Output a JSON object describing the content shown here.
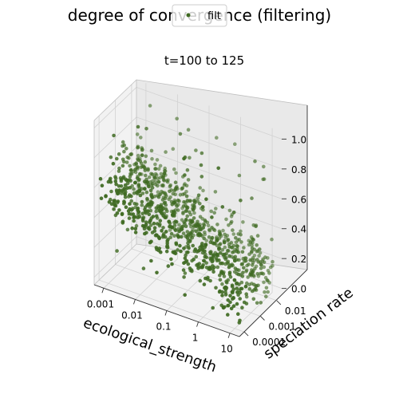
{
  "chart_data": {
    "type": "scatter",
    "projection": "3d",
    "title": "degree of convergence (filtering)",
    "subtitle": "t=100 to 125",
    "xlabel": "ecological_strength",
    "ylabel": "speciation rate",
    "zlabel": "",
    "x_scale": "log",
    "y_scale": "log",
    "x_ticks": [
      "0.001",
      "0.01",
      "0.1",
      "1",
      "10"
    ],
    "x_tick_values": [
      0.001,
      0.01,
      0.1,
      1,
      10
    ],
    "y_ticks": [
      "0.0001",
      "0.001",
      "0.01"
    ],
    "y_tick_values": [
      0.0001,
      0.001,
      0.01
    ],
    "z_ticks": [
      "0.0",
      "0.2",
      "0.4",
      "0.6",
      "0.8",
      "1.0"
    ],
    "z_tick_values": [
      0.0,
      0.2,
      0.4,
      0.6,
      0.8,
      1.0
    ],
    "xlim": [
      0.0005,
      20
    ],
    "ylim": [
      5e-05,
      0.02
    ],
    "zlim": [
      -0.05,
      1.05
    ],
    "grid": true,
    "legend": {
      "position": "top-center",
      "entries": [
        "filt"
      ]
    },
    "series": [
      {
        "name": "filt",
        "color": "#3f6a22",
        "point_count": 1000,
        "description": "dense random cloud; z tends to decrease as ecological_strength increases, wide spread at low strength"
      }
    ]
  }
}
